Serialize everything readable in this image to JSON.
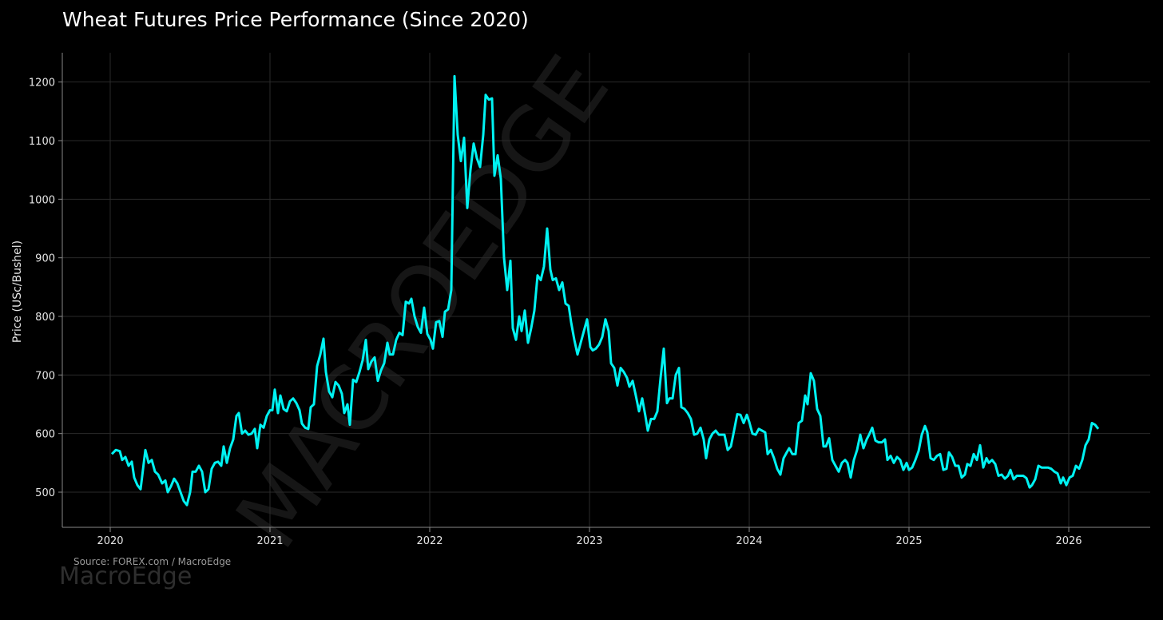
{
  "chart_data": {
    "type": "line",
    "title": "Wheat Futures Price Performance (Since 2020)",
    "y_label": "Price (USc/Bushel)",
    "source": "Source: FOREX.com / MacroEdge",
    "brand": "MacroEdge",
    "watermark": "MACROEDGE",
    "grid": true,
    "xlim": [
      2019.7,
      2026.51
    ],
    "ylim": [
      440,
      1250
    ],
    "xticks": [
      2020,
      2021,
      2022,
      2023,
      2024,
      2025,
      2026
    ],
    "yticks": [
      500,
      600,
      700,
      800,
      900,
      1000,
      1100,
      1200
    ],
    "x": [
      2020.01,
      2020.035,
      2020.06,
      2020.075,
      2020.095,
      2020.115,
      2020.135,
      2020.15,
      2020.17,
      2020.19,
      2020.22,
      2020.24,
      2020.26,
      2020.28,
      2020.3,
      2020.325,
      2020.345,
      2020.36,
      2020.38,
      2020.4,
      2020.42,
      2020.44,
      2020.46,
      2020.48,
      2020.5,
      2020.515,
      2020.535,
      2020.555,
      2020.575,
      2020.595,
      2020.615,
      2020.635,
      2020.655,
      2020.675,
      2020.695,
      2020.71,
      2020.73,
      2020.75,
      2020.77,
      2020.79,
      2020.805,
      2020.825,
      2020.845,
      2020.865,
      2020.885,
      2020.905,
      2020.92,
      2020.94,
      2020.96,
      2020.98,
      2021,
      2021.015,
      2021.03,
      2021.05,
      2021.065,
      2021.085,
      2021.105,
      2021.125,
      2021.145,
      2021.165,
      2021.185,
      2021.2,
      2021.22,
      2021.24,
      2021.255,
      2021.275,
      2021.295,
      2021.315,
      2021.335,
      2021.35,
      2021.37,
      2021.39,
      2021.41,
      2021.43,
      2021.45,
      2021.465,
      2021.485,
      2021.5,
      2021.52,
      2021.54,
      2021.56,
      2021.58,
      2021.6,
      2021.615,
      2021.635,
      2021.655,
      2021.675,
      2021.695,
      2021.715,
      2021.735,
      2021.75,
      2021.77,
      2021.79,
      2021.81,
      2021.83,
      2021.85,
      2021.87,
      2021.885,
      2021.905,
      2021.925,
      2021.945,
      2021.965,
      2021.985,
      2022.005,
      2022.02,
      2022.04,
      2022.06,
      2022.08,
      2022.095,
      2022.115,
      2022.135,
      2022.155,
      2022.175,
      2022.195,
      2022.215,
      2022.235,
      2022.255,
      2022.275,
      2022.295,
      2022.315,
      2022.335,
      2022.35,
      2022.37,
      2022.39,
      2022.405,
      2022.425,
      2022.445,
      2022.465,
      2022.485,
      2022.505,
      2022.52,
      2022.54,
      2022.56,
      2022.575,
      2022.595,
      2022.615,
      2022.635,
      2022.655,
      2022.675,
      2022.695,
      2022.715,
      2022.735,
      2022.755,
      2022.77,
      2022.79,
      2022.81,
      2022.83,
      2022.85,
      2022.87,
      2022.885,
      2022.905,
      2022.925,
      2022.945,
      2022.965,
      2022.985,
      2023.005,
      2023.02,
      2023.04,
      2023.06,
      2023.08,
      2023.1,
      2023.12,
      2023.135,
      2023.155,
      2023.175,
      2023.195,
      2023.215,
      2023.235,
      2023.25,
      2023.27,
      2023.29,
      2023.31,
      2023.33,
      2023.35,
      2023.365,
      2023.385,
      2023.405,
      2023.425,
      2023.445,
      2023.465,
      2023.485,
      2023.5,
      2023.52,
      2023.54,
      2023.56,
      2023.575,
      2023.595,
      2023.615,
      2023.635,
      2023.655,
      2023.675,
      2023.695,
      2023.715,
      2023.73,
      2023.75,
      2023.77,
      2023.79,
      2023.81,
      2023.83,
      2023.845,
      2023.865,
      2023.885,
      2023.905,
      2023.925,
      2023.945,
      2023.965,
      2023.985,
      2024,
      2024.02,
      2024.04,
      2024.06,
      2024.08,
      2024.1,
      2024.115,
      2024.135,
      2024.155,
      2024.175,
      2024.195,
      2024.215,
      2024.235,
      2024.25,
      2024.27,
      2024.29,
      2024.31,
      2024.33,
      2024.35,
      2024.365,
      2024.385,
      2024.405,
      2024.425,
      2024.445,
      2024.465,
      2024.48,
      2024.5,
      2024.52,
      2024.54,
      2024.56,
      2024.58,
      2024.6,
      2024.615,
      2024.635,
      2024.655,
      2024.675,
      2024.695,
      2024.715,
      2024.735,
      2024.75,
      2024.77,
      2024.79,
      2024.81,
      2024.83,
      2024.85,
      2024.865,
      2024.885,
      2024.905,
      2024.925,
      2024.945,
      2024.965,
      2024.985,
      2025,
      2025.02,
      2025.04,
      2025.06,
      2025.08,
      2025.1,
      2025.115,
      2025.135,
      2025.155,
      2025.175,
      2025.195,
      2025.215,
      2025.235,
      2025.25,
      2025.27,
      2025.29,
      2025.31,
      2025.33,
      2025.35,
      2025.365,
      2025.385,
      2025.405,
      2025.425,
      2025.445,
      2025.465,
      2025.485,
      2025.5,
      2025.52,
      2025.54,
      2025.56,
      2025.58,
      2025.6,
      2025.62,
      2025.635,
      2025.655,
      2025.675,
      2025.695,
      2025.715,
      2025.735,
      2025.755,
      2025.77,
      2025.79,
      2025.81,
      2025.83,
      2025.85,
      2025.87,
      2025.89,
      2025.91,
      2025.93,
      2025.95,
      2025.965,
      2025.985,
      2026.005,
      2026.025,
      2026.045,
      2026.065,
      2026.085,
      2026.105,
      2026.125,
      2026.145,
      2026.165,
      2026.185
    ],
    "series": [
      {
        "name": "Wheat Futures",
        "color": "#00f2f2",
        "values": [
          565,
          572,
          570,
          555,
          560,
          545,
          552,
          525,
          512,
          505,
          572,
          550,
          555,
          535,
          530,
          515,
          520,
          500,
          510,
          523,
          515,
          500,
          485,
          478,
          500,
          535,
          535,
          545,
          535,
          500,
          505,
          540,
          550,
          552,
          545,
          578,
          550,
          575,
          590,
          630,
          635,
          600,
          605,
          598,
          600,
          608,
          575,
          615,
          610,
          630,
          640,
          640,
          675,
          635,
          665,
          642,
          638,
          655,
          660,
          652,
          640,
          617,
          610,
          608,
          645,
          650,
          715,
          735,
          762,
          705,
          672,
          662,
          688,
          682,
          668,
          635,
          650,
          615,
          692,
          688,
          705,
          725,
          760,
          710,
          723,
          730,
          690,
          708,
          720,
          755,
          735,
          735,
          760,
          772,
          768,
          825,
          822,
          830,
          800,
          782,
          772,
          815,
          770,
          760,
          745,
          790,
          792,
          765,
          808,
          812,
          845,
          1210,
          1110,
          1065,
          1105,
          985,
          1050,
          1095,
          1070,
          1055,
          1110,
          1178,
          1170,
          1172,
          1040,
          1075,
          1035,
          900,
          845,
          895,
          780,
          760,
          800,
          775,
          810,
          755,
          780,
          810,
          870,
          862,
          885,
          950,
          880,
          862,
          865,
          845,
          858,
          822,
          818,
          790,
          760,
          735,
          755,
          775,
          795,
          748,
          742,
          745,
          752,
          765,
          795,
          775,
          720,
          712,
          682,
          712,
          705,
          695,
          680,
          690,
          665,
          638,
          660,
          630,
          605,
          625,
          625,
          638,
          695,
          745,
          652,
          660,
          660,
          700,
          712,
          645,
          642,
          635,
          625,
          598,
          600,
          610,
          590,
          558,
          590,
          600,
          605,
          598,
          598,
          598,
          572,
          578,
          605,
          633,
          632,
          618,
          632,
          620,
          600,
          598,
          608,
          605,
          602,
          565,
          572,
          558,
          540,
          530,
          558,
          568,
          575,
          565,
          565,
          618,
          622,
          665,
          650,
          703,
          690,
          642,
          630,
          578,
          578,
          592,
          555,
          545,
          535,
          550,
          555,
          550,
          525,
          555,
          572,
          598,
          575,
          590,
          598,
          610,
          588,
          585,
          585,
          590,
          555,
          562,
          550,
          560,
          555,
          538,
          550,
          538,
          542,
          555,
          570,
          598,
          613,
          602,
          558,
          555,
          562,
          565,
          538,
          540,
          568,
          560,
          545,
          545,
          525,
          530,
          548,
          545,
          565,
          555,
          580,
          542,
          558,
          550,
          555,
          548,
          528,
          530,
          523,
          528,
          538,
          522,
          528,
          528,
          528,
          524,
          508,
          512,
          522,
          545,
          542,
          542,
          542,
          540,
          535,
          532,
          515,
          525,
          512,
          525,
          528,
          545,
          540,
          555,
          580,
          590,
          618,
          615,
          608
        ]
      }
    ]
  }
}
